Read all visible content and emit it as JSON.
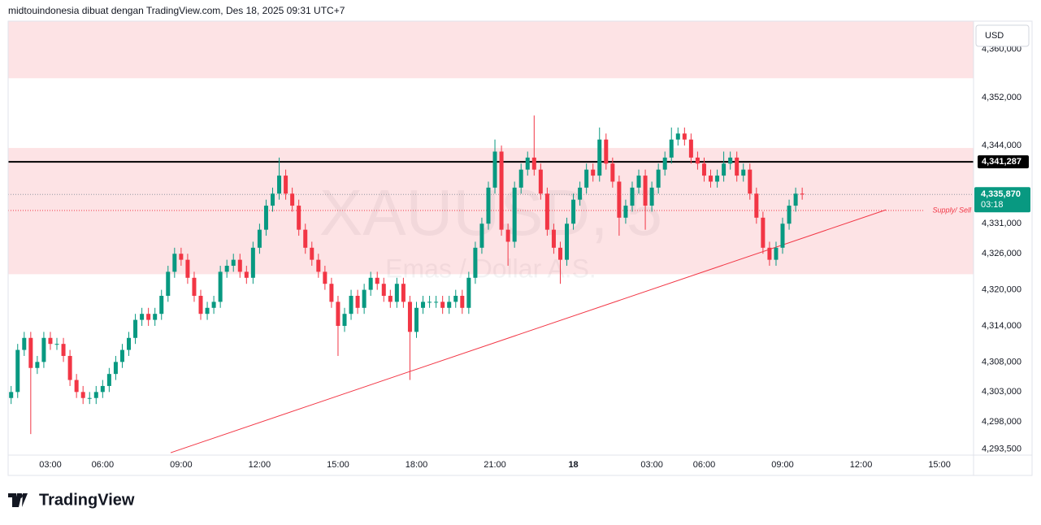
{
  "header": "midtouindonesia dibuat dengan TradingView.com, Des 18, 2025 09:31 UTC+7",
  "branding": "TradingView",
  "chart_data": {
    "type": "candlestick",
    "watermark": {
      "symbol": "XAUUSD, 5",
      "description": "Emas / Dollar A.S."
    },
    "currency": "USD",
    "x": [
      "2025-12-17 01:30",
      "2025-12-17 01:45",
      "2025-12-17 02:00",
      "2025-12-17 02:15",
      "2025-12-17 02:30",
      "2025-12-17 02:45",
      "2025-12-17 03:00",
      "2025-12-17 03:15",
      "2025-12-17 03:30",
      "2025-12-17 03:45",
      "2025-12-17 04:00",
      "2025-12-17 04:15",
      "2025-12-17 04:30",
      "2025-12-17 04:45",
      "2025-12-17 06:00",
      "2025-12-17 06:15",
      "2025-12-17 06:30",
      "2025-12-17 06:45",
      "2025-12-17 07:00",
      "2025-12-17 07:15",
      "2025-12-17 07:30",
      "2025-12-17 07:45",
      "2025-12-17 08:00",
      "2025-12-17 08:15",
      "2025-12-17 08:30",
      "2025-12-17 08:45",
      "2025-12-17 09:00",
      "2025-12-17 09:15",
      "2025-12-17 09:30",
      "2025-12-17 09:45",
      "2025-12-17 10:00",
      "2025-12-17 10:15",
      "2025-12-17 10:30",
      "2025-12-17 10:45",
      "2025-12-17 11:00",
      "2025-12-17 11:15",
      "2025-12-17 11:30",
      "2025-12-17 11:45",
      "2025-12-17 12:00",
      "2025-12-17 12:15",
      "2025-12-17 12:30",
      "2025-12-17 12:45",
      "2025-12-17 13:00",
      "2025-12-17 13:15",
      "2025-12-17 13:30",
      "2025-12-17 13:45",
      "2025-12-17 14:00",
      "2025-12-17 14:15",
      "2025-12-17 14:30",
      "2025-12-17 14:45",
      "2025-12-17 15:00",
      "2025-12-17 15:15",
      "2025-12-17 15:30",
      "2025-12-17 15:45",
      "2025-12-17 16:00",
      "2025-12-17 16:15",
      "2025-12-17 16:30",
      "2025-12-17 16:45",
      "2025-12-17 17:00",
      "2025-12-17 17:15",
      "2025-12-17 17:30",
      "2025-12-17 17:45",
      "2025-12-17 18:00",
      "2025-12-17 18:15",
      "2025-12-17 18:30",
      "2025-12-17 18:45",
      "2025-12-17 19:00",
      "2025-12-17 19:15",
      "2025-12-17 19:30",
      "2025-12-17 19:45",
      "2025-12-17 20:00",
      "2025-12-17 20:15",
      "2025-12-17 20:30",
      "2025-12-17 20:45",
      "2025-12-17 21:00",
      "2025-12-17 21:15",
      "2025-12-17 21:30",
      "2025-12-17 21:45",
      "2025-12-17 22:00",
      "2025-12-17 22:15",
      "2025-12-17 22:30",
      "2025-12-17 22:45",
      "2025-12-17 23:00",
      "2025-12-17 23:15",
      "2025-12-17 23:30",
      "2025-12-17 23:45",
      "2025-12-18 00:00",
      "2025-12-18 00:15",
      "2025-12-18 00:30",
      "2025-12-18 00:45",
      "2025-12-18 01:00",
      "2025-12-18 01:15",
      "2025-12-18 01:30",
      "2025-12-18 01:45",
      "2025-12-18 02:00",
      "2025-12-18 02:15",
      "2025-12-18 02:30",
      "2025-12-18 02:45",
      "2025-12-18 03:00",
      "2025-12-18 03:15",
      "2025-12-18 03:30",
      "2025-12-18 03:45",
      "2025-12-18 04:00",
      "2025-12-18 04:15",
      "2025-12-18 04:30",
      "2025-12-18 04:45",
      "2025-12-18 06:00",
      "2025-12-18 06:15",
      "2025-12-18 06:30",
      "2025-12-18 06:45",
      "2025-12-18 07:00",
      "2025-12-18 07:15",
      "2025-12-18 07:30",
      "2025-12-18 07:45",
      "2025-12-18 08:00",
      "2025-12-18 08:15",
      "2025-12-18 08:30",
      "2025-12-18 08:45",
      "2025-12-18 09:00",
      "2025-12-18 09:15",
      "2025-12-18 09:30",
      "2025-12-18 09:45"
    ],
    "open": [
      4302,
      4303,
      4310,
      4312,
      4307,
      4308,
      4312,
      4311,
      4311,
      4309,
      4305,
      4303,
      4302,
      4302,
      4303,
      4304,
      4306,
      4308,
      4310,
      4312,
      4315,
      4316,
      4315,
      4316,
      4319,
      4323,
      4326,
      4325,
      4322,
      4319,
      4316,
      4317,
      4318,
      4323,
      4324,
      4325,
      4323,
      4322,
      4327,
      4330,
      4334,
      4336,
      4339,
      4336,
      4334,
      4330,
      4327,
      4325,
      4323,
      4321,
      4318,
      4314,
      4316,
      4319,
      4317,
      4320,
      4322,
      4321,
      4319,
      4318,
      4321,
      4318,
      4313,
      4317,
      4318,
      4318,
      4318,
      4317,
      4318,
      4319,
      4317,
      4322,
      4327,
      4331,
      4337,
      4343,
      4330,
      4328,
      4337,
      4340,
      4342,
      4340,
      4336,
      4330,
      4327,
      4325,
      4331,
      4335,
      4337,
      4340,
      4339,
      4345,
      4341,
      4338,
      4332,
      4334,
      4337,
      4339,
      4334,
      4337,
      4340,
      4342,
      4345,
      4346,
      4345,
      4342,
      4341,
      4339,
      4338,
      4339,
      4341,
      4342,
      4339,
      4340,
      4336,
      4332,
      4327,
      4325,
      4327,
      4331,
      4334,
      4336
    ],
    "high": [
      4304,
      4311,
      4313,
      4313,
      4309,
      4313,
      4313,
      4312,
      4312,
      4310,
      4306,
      4304,
      4303,
      4304,
      4305,
      4307,
      4309,
      4311,
      4313,
      4316,
      4317,
      4317,
      4317,
      4320,
      4324,
      4327,
      4327,
      4326,
      4323,
      4320,
      4318,
      4319,
      4324,
      4325,
      4326,
      4326,
      4324,
      4328,
      4331,
      4335,
      4337,
      4342,
      4340,
      4337,
      4335,
      4331,
      4328,
      4326,
      4324,
      4322,
      4319,
      4317,
      4320,
      4320,
      4321,
      4323,
      4323,
      4322,
      4320,
      4322,
      4322,
      4319,
      4318,
      4319,
      4319,
      4319,
      4319,
      4319,
      4320,
      4320,
      4323,
      4328,
      4332,
      4338,
      4345,
      4344,
      4331,
      4338,
      4341,
      4343,
      4349,
      4341,
      4337,
      4331,
      4328,
      4332,
      4336,
      4338,
      4341,
      4341,
      4347,
      4346,
      4342,
      4339,
      4335,
      4338,
      4340,
      4340,
      4338,
      4341,
      4343,
      4347,
      4347,
      4347,
      4346,
      4343,
      4342,
      4340,
      4340,
      4343,
      4343,
      4343,
      4341,
      4341,
      4337,
      4333,
      4328,
      4328,
      4332,
      4335,
      4337,
      4337
    ],
    "low": [
      4301,
      4302,
      4309,
      4296,
      4306,
      4307,
      4310,
      4310,
      4308,
      4304,
      4302,
      4301,
      4301,
      4301,
      4302,
      4303,
      4305,
      4307,
      4309,
      4311,
      4314,
      4314,
      4314,
      4315,
      4318,
      4322,
      4324,
      4321,
      4318,
      4315,
      4315,
      4316,
      4317,
      4322,
      4323,
      4322,
      4321,
      4321,
      4326,
      4329,
      4333,
      4335,
      4335,
      4333,
      4329,
      4326,
      4324,
      4322,
      4320,
      4317,
      4309,
      4313,
      4315,
      4316,
      4316,
      4319,
      4320,
      4318,
      4317,
      4317,
      4317,
      4305,
      4312,
      4316,
      4317,
      4317,
      4316,
      4316,
      4317,
      4316,
      4316,
      4321,
      4326,
      4330,
      4336,
      4329,
      4324,
      4327,
      4336,
      4339,
      4339,
      4335,
      4329,
      4326,
      4321,
      4324,
      4330,
      4334,
      4336,
      4338,
      4338,
      4340,
      4337,
      4329,
      4331,
      4333,
      4336,
      4330,
      4333,
      4336,
      4339,
      4341,
      4344,
      4344,
      4341,
      4340,
      4338,
      4337,
      4337,
      4338,
      4340,
      4338,
      4338,
      4335,
      4331,
      4326,
      4324,
      4324,
      4326,
      4330,
      4333,
      4335
    ],
    "close": [
      4303,
      4310,
      4312,
      4307,
      4308,
      4312,
      4311,
      4311,
      4309,
      4305,
      4303,
      4302,
      4302,
      4303,
      4304,
      4306,
      4308,
      4310,
      4312,
      4315,
      4316,
      4315,
      4316,
      4319,
      4323,
      4326,
      4325,
      4322,
      4319,
      4316,
      4317,
      4318,
      4323,
      4324,
      4325,
      4323,
      4322,
      4327,
      4330,
      4334,
      4336,
      4339,
      4336,
      4334,
      4330,
      4327,
      4325,
      4323,
      4321,
      4318,
      4314,
      4316,
      4319,
      4317,
      4320,
      4322,
      4321,
      4319,
      4318,
      4321,
      4318,
      4313,
      4317,
      4318,
      4318,
      4318,
      4317,
      4318,
      4319,
      4317,
      4322,
      4327,
      4331,
      4337,
      4343,
      4330,
      4328,
      4337,
      4340,
      4342,
      4340,
      4336,
      4330,
      4327,
      4325,
      4331,
      4335,
      4337,
      4340,
      4339,
      4345,
      4341,
      4338,
      4332,
      4334,
      4337,
      4339,
      4334,
      4337,
      4340,
      4342,
      4345,
      4346,
      4345,
      4342,
      4341,
      4339,
      4338,
      4339,
      4341,
      4342,
      4339,
      4340,
      4336,
      4332,
      4327,
      4325,
      4327,
      4331,
      4334,
      4336,
      4335.87
    ],
    "up_color": "#089981",
    "down_color": "#f23645",
    "ylim": [
      4292.5,
      4364.7
    ],
    "yticks": [
      {
        "value": 4360,
        "label": "4,360,000"
      },
      {
        "value": 4352,
        "label": "4,352,000"
      },
      {
        "value": 4344,
        "label": "4,344,000"
      },
      {
        "value": 4331,
        "label": "4,331,000"
      },
      {
        "value": 4326,
        "label": "4,326,000"
      },
      {
        "value": 4320,
        "label": "4,320,000"
      },
      {
        "value": 4314,
        "label": "4,314,000"
      },
      {
        "value": 4308,
        "label": "4,308,000"
      },
      {
        "value": 4303,
        "label": "4,303,000"
      },
      {
        "value": 4298,
        "label": "4,298,000"
      },
      {
        "value": 4293.5,
        "label": "4,293,500"
      }
    ],
    "xticks": [
      {
        "value": "2025-12-17 03:00",
        "label": "03:00"
      },
      {
        "value": "2025-12-17 06:00",
        "label": "06:00"
      },
      {
        "value": "2025-12-17 09:00",
        "label": "09:00"
      },
      {
        "value": "2025-12-17 12:00",
        "label": "12:00"
      },
      {
        "value": "2025-12-17 15:00",
        "label": "15:00"
      },
      {
        "value": "2025-12-17 18:00",
        "label": "18:00"
      },
      {
        "value": "2025-12-17 21:00",
        "label": "21:00"
      },
      {
        "value": "2025-12-18 00:00",
        "label": "18"
      },
      {
        "value": "2025-12-18 03:00",
        "label": "03:00"
      },
      {
        "value": "2025-12-18 06:00",
        "label": "06:00"
      },
      {
        "value": "2025-12-18 09:00",
        "label": "09:00"
      },
      {
        "value": "2025-12-18 12:00",
        "label": "12:00"
      },
      {
        "value": "2025-12-18 15:00",
        "label": "15:00"
      }
    ],
    "grid": false,
    "zones": [
      {
        "ylim": [
          4355.2,
          4364.7
        ],
        "color": "#f23645"
      },
      {
        "ylim": [
          4322.6,
          4343.6
        ],
        "color": "#f23645"
      }
    ],
    "hlines": [
      {
        "value": 4341.287,
        "label": "4,341,287",
        "color": "#000000"
      }
    ],
    "last_price": {
      "value": 4335.87,
      "label": "4,335,870",
      "countdown": "03:18",
      "color": "#089981"
    },
    "annotations": [
      {
        "text": "Supply/ Sell",
        "value": 4333.2,
        "color": "#f23645"
      }
    ],
    "trendline": {
      "x": [
        "2025-12-17 08:36",
        "2025-12-18 12:57"
      ],
      "values": [
        4292.9,
        4333.3
      ],
      "color": "#f23645"
    }
  }
}
